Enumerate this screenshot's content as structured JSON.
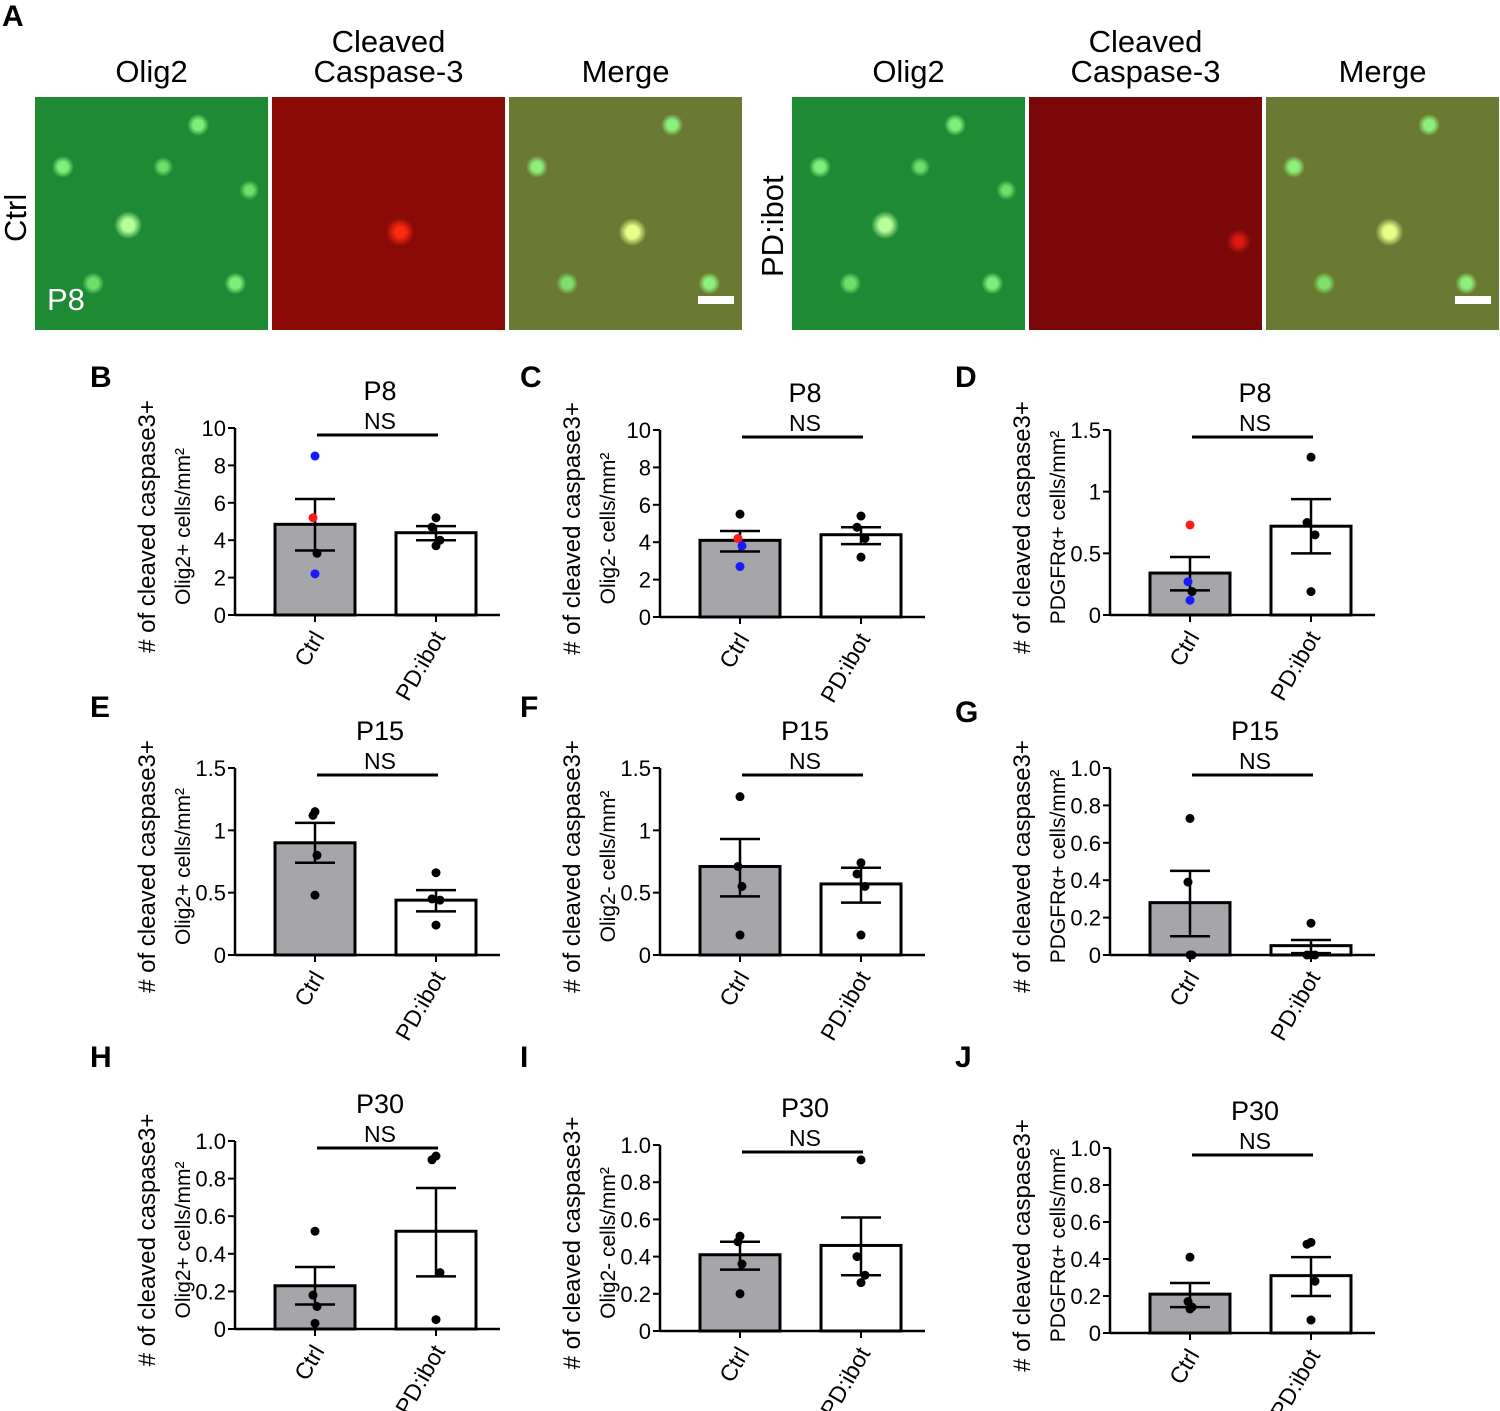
{
  "panel_a": {
    "letter": "A",
    "column_headers": [
      "Olig2",
      "Cleaved\nCaspase-3",
      "Merge",
      "Olig2",
      "Cleaved\nCaspase-3",
      "Merge"
    ],
    "row_labels": [
      "Ctrl",
      "PD:ibot"
    ],
    "age_label": "P8"
  },
  "chart_data": [
    {
      "letter": "B",
      "type": "bar",
      "title": "P8",
      "annotation": "NS",
      "ylabel": [
        "# of cleaved caspase3+",
        "Olig2+ cells/mm²"
      ],
      "categories": [
        "Ctrl",
        "PD:ibot"
      ],
      "ylim": [
        0,
        10
      ],
      "yticks": [
        "0",
        "2",
        "4",
        "6",
        "8",
        "10"
      ],
      "ytick_values": [
        0,
        2,
        4,
        6,
        8,
        10
      ],
      "values": [
        4.85,
        4.4
      ],
      "sem": [
        [
          3.45,
          6.2
        ],
        [
          4.0,
          4.75
        ]
      ],
      "points": [
        [
          {
            "y": 8.5,
            "c": "blue"
          },
          {
            "y": 5.2,
            "c": "red"
          },
          {
            "y": 3.3,
            "c": "black"
          },
          {
            "y": 2.2,
            "c": "blue"
          }
        ],
        [
          {
            "y": 5.2,
            "c": "black"
          },
          {
            "y": 4.7,
            "c": "black"
          },
          {
            "y": 4.0,
            "c": "black"
          },
          {
            "y": 3.7,
            "c": "black"
          }
        ]
      ]
    },
    {
      "letter": "C",
      "type": "bar",
      "title": "P8",
      "annotation": "NS",
      "ylabel": [
        "# of cleaved caspase3+",
        "Olig2- cells/mm²"
      ],
      "categories": [
        "Ctrl",
        "PD:ibot"
      ],
      "ylim": [
        0,
        10
      ],
      "yticks": [
        "0",
        "2",
        "4",
        "6",
        "8",
        "10"
      ],
      "ytick_values": [
        0,
        2,
        4,
        6,
        8,
        10
      ],
      "values": [
        4.1,
        4.4
      ],
      "sem": [
        [
          3.5,
          4.6
        ],
        [
          3.9,
          4.8
        ]
      ],
      "points": [
        [
          {
            "y": 5.5,
            "c": "black"
          },
          {
            "y": 4.2,
            "c": "red"
          },
          {
            "y": 3.8,
            "c": "blue"
          },
          {
            "y": 2.7,
            "c": "blue"
          }
        ],
        [
          {
            "y": 5.4,
            "c": "black"
          },
          {
            "y": 4.8,
            "c": "black"
          },
          {
            "y": 4.2,
            "c": "black"
          },
          {
            "y": 3.2,
            "c": "black"
          }
        ]
      ]
    },
    {
      "letter": "D",
      "type": "bar",
      "title": "P8",
      "annotation": "NS",
      "ylabel": [
        "# of cleaved caspase3+",
        "PDGFRα+  cells/mm²"
      ],
      "categories": [
        "Ctrl",
        "PD:ibot"
      ],
      "ylim": [
        0,
        1.5
      ],
      "yticks": [
        "0",
        "0.5",
        "1",
        "1.5"
      ],
      "ytick_values": [
        0,
        0.5,
        1,
        1.5
      ],
      "values": [
        0.34,
        0.72
      ],
      "sem": [
        [
          0.2,
          0.47
        ],
        [
          0.5,
          0.94
        ]
      ],
      "points": [
        [
          {
            "y": 0.73,
            "c": "red"
          },
          {
            "y": 0.27,
            "c": "blue"
          },
          {
            "y": 0.19,
            "c": "black"
          },
          {
            "y": 0.12,
            "c": "blue"
          }
        ],
        [
          {
            "y": 1.28,
            "c": "black"
          },
          {
            "y": 0.75,
            "c": "black"
          },
          {
            "y": 0.65,
            "c": "black"
          },
          {
            "y": 0.19,
            "c": "black"
          }
        ]
      ]
    },
    {
      "letter": "E",
      "type": "bar",
      "title": "P15",
      "annotation": "NS",
      "ylabel": [
        "# of cleaved caspase3+",
        "Olig2+ cells/mm²"
      ],
      "categories": [
        "Ctrl",
        "PD:ibot"
      ],
      "ylim": [
        0,
        1.5
      ],
      "yticks": [
        "0",
        "0.5",
        "1",
        "1.5"
      ],
      "ytick_values": [
        0,
        0.5,
        1,
        1.5
      ],
      "values": [
        0.9,
        0.44
      ],
      "sem": [
        [
          0.74,
          1.06
        ],
        [
          0.35,
          0.52
        ]
      ],
      "points": [
        [
          {
            "y": 1.15,
            "c": "black"
          },
          {
            "y": 1.12,
            "c": "black"
          },
          {
            "y": 0.8,
            "c": "black"
          },
          {
            "y": 0.48,
            "c": "black"
          }
        ],
        [
          {
            "y": 0.66,
            "c": "black"
          },
          {
            "y": 0.45,
            "c": "black"
          },
          {
            "y": 0.44,
            "c": "black"
          },
          {
            "y": 0.24,
            "c": "black"
          }
        ]
      ]
    },
    {
      "letter": "F",
      "type": "bar",
      "title": "P15",
      "annotation": "NS",
      "ylabel": [
        "# of cleaved caspase3+",
        "Olig2- cells/mm²"
      ],
      "categories": [
        "Ctrl",
        "PD:ibot"
      ],
      "ylim": [
        0,
        1.5
      ],
      "yticks": [
        "0",
        "0.5",
        "1",
        "1.5"
      ],
      "ytick_values": [
        0,
        0.5,
        1,
        1.5
      ],
      "values": [
        0.71,
        0.57
      ],
      "sem": [
        [
          0.47,
          0.93
        ],
        [
          0.42,
          0.7
        ]
      ],
      "points": [
        [
          {
            "y": 1.27,
            "c": "black"
          },
          {
            "y": 0.71,
            "c": "black"
          },
          {
            "y": 0.55,
            "c": "black"
          },
          {
            "y": 0.16,
            "c": "black"
          }
        ],
        [
          {
            "y": 0.74,
            "c": "black"
          },
          {
            "y": 0.65,
            "c": "black"
          },
          {
            "y": 0.55,
            "c": "black"
          },
          {
            "y": 0.16,
            "c": "black"
          }
        ]
      ]
    },
    {
      "letter": "G",
      "type": "bar",
      "title": "P15",
      "annotation": "NS",
      "ylabel": [
        "# of cleaved caspase3+",
        "PDGFRα+  cells/mm²"
      ],
      "categories": [
        "Ctrl",
        "PD:ibot"
      ],
      "ylim": [
        0,
        1.0
      ],
      "yticks": [
        "0",
        "0.2",
        "0.4",
        "0.6",
        "0.8",
        "1.0"
      ],
      "ytick_values": [
        0,
        0.2,
        0.4,
        0.6,
        0.8,
        1.0
      ],
      "values": [
        0.28,
        0.05
      ],
      "sem": [
        [
          0.1,
          0.45
        ],
        [
          0.01,
          0.08
        ]
      ],
      "points": [
        [
          {
            "y": 0.73,
            "c": "black"
          },
          {
            "y": 0.39,
            "c": "black"
          },
          {
            "y": 0.0,
            "c": "black"
          },
          {
            "y": 0.0,
            "c": "black"
          }
        ],
        [
          {
            "y": 0.17,
            "c": "black"
          },
          {
            "y": 0.0,
            "c": "black"
          },
          {
            "y": 0.0,
            "c": "black"
          },
          {
            "y": 0.0,
            "c": "black"
          }
        ]
      ]
    },
    {
      "letter": "H",
      "type": "bar",
      "title": "P30",
      "annotation": "NS",
      "ylabel": [
        "# of cleaved caspase3+",
        "Olig2+ cells/mm²"
      ],
      "categories": [
        "Ctrl",
        "PD:ibot"
      ],
      "ylim": [
        0,
        1.0
      ],
      "yticks": [
        "0",
        "0.2",
        "0.4",
        "0.6",
        "0.8",
        "1.0"
      ],
      "ytick_values": [
        0,
        0.2,
        0.4,
        0.6,
        0.8,
        1.0
      ],
      "values": [
        0.23,
        0.52
      ],
      "sem": [
        [
          0.13,
          0.33
        ],
        [
          0.28,
          0.75
        ]
      ],
      "points": [
        [
          {
            "y": 0.52,
            "c": "black"
          },
          {
            "y": 0.18,
            "c": "black"
          },
          {
            "y": 0.12,
            "c": "black"
          },
          {
            "y": 0.03,
            "c": "black"
          }
        ],
        [
          {
            "y": 0.92,
            "c": "black"
          },
          {
            "y": 0.9,
            "c": "black"
          },
          {
            "y": 0.3,
            "c": "black"
          },
          {
            "y": 0.05,
            "c": "black"
          }
        ]
      ]
    },
    {
      "letter": "I",
      "type": "bar",
      "title": "P30",
      "annotation": "NS",
      "ylabel": [
        "# of cleaved caspase3+",
        "Olig2- cells/mm²"
      ],
      "categories": [
        "Ctrl",
        "PD:ibot"
      ],
      "ylim": [
        0,
        1.0
      ],
      "yticks": [
        "0",
        "0.2",
        "0.4",
        "0.6",
        "0.8",
        "1.0"
      ],
      "ytick_values": [
        0,
        0.2,
        0.4,
        0.6,
        0.8,
        1.0
      ],
      "values": [
        0.41,
        0.46
      ],
      "sem": [
        [
          0.33,
          0.48
        ],
        [
          0.3,
          0.61
        ]
      ],
      "points": [
        [
          {
            "y": 0.51,
            "c": "black"
          },
          {
            "y": 0.48,
            "c": "black"
          },
          {
            "y": 0.36,
            "c": "black"
          },
          {
            "y": 0.2,
            "c": "black"
          }
        ],
        [
          {
            "y": 0.92,
            "c": "black"
          },
          {
            "y": 0.4,
            "c": "black"
          },
          {
            "y": 0.3,
            "c": "black"
          },
          {
            "y": 0.26,
            "c": "black"
          }
        ]
      ]
    },
    {
      "letter": "J",
      "type": "bar",
      "title": "P30",
      "annotation": "NS",
      "ylabel": [
        "# of cleaved caspase3+",
        "PDGFRα+  cells/mm²"
      ],
      "categories": [
        "Ctrl",
        "PD:ibot"
      ],
      "ylim": [
        0,
        1.0
      ],
      "yticks": [
        "0",
        "0.2",
        "0.4",
        "0.6",
        "0.8",
        "1.0"
      ],
      "ytick_values": [
        0,
        0.2,
        0.4,
        0.6,
        0.8,
        1.0
      ],
      "values": [
        0.21,
        0.31
      ],
      "sem": [
        [
          0.14,
          0.27
        ],
        [
          0.2,
          0.41
        ]
      ],
      "points": [
        [
          {
            "y": 0.41,
            "c": "black"
          },
          {
            "y": 0.17,
            "c": "black"
          },
          {
            "y": 0.14,
            "c": "black"
          },
          {
            "y": 0.13,
            "c": "black"
          }
        ],
        [
          {
            "y": 0.49,
            "c": "black"
          },
          {
            "y": 0.48,
            "c": "black"
          },
          {
            "y": 0.28,
            "c": "black"
          },
          {
            "y": 0.07,
            "c": "black"
          }
        ]
      ]
    }
  ],
  "colors": {
    "ctrl_bar": "#a6a6aa",
    "pd_bar": "#ffffff",
    "blue": "#1a1aff",
    "red": "#ff1a1a",
    "black": "#000000"
  }
}
